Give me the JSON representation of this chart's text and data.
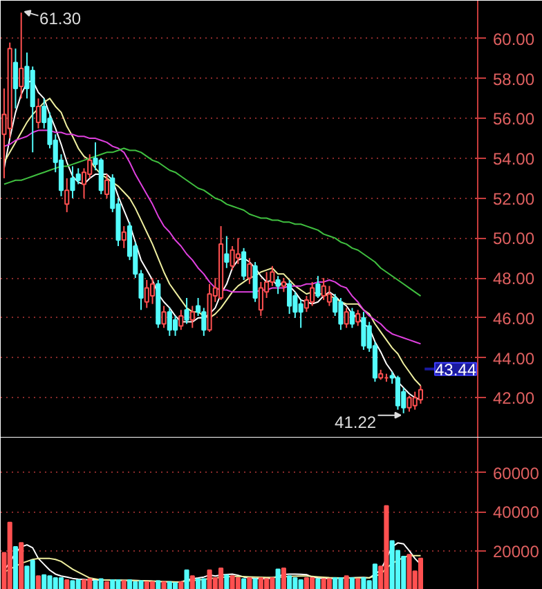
{
  "chart_data": [
    {
      "type": "candlestick",
      "categories": [
        null,
        null,
        null,
        null,
        null,
        null,
        null,
        null,
        null,
        null,
        null,
        null,
        null,
        null,
        null,
        null,
        null,
        null,
        null,
        null,
        null,
        null,
        null,
        null,
        null,
        null,
        null,
        null,
        null,
        null,
        null,
        null,
        null,
        null,
        null,
        null,
        null,
        null,
        null,
        null,
        null,
        null,
        null,
        null,
        null,
        null,
        null,
        null,
        null,
        null,
        null,
        null,
        null,
        null,
        null,
        null,
        null,
        null,
        null,
        null,
        null,
        null,
        null,
        null,
        null,
        null,
        null,
        null,
        null,
        null,
        null,
        null,
        null,
        null
      ],
      "ohlc": [
        [
          55.2,
          57.5,
          53.0,
          56.2
        ],
        [
          55.5,
          59.8,
          55.0,
          59.5
        ],
        [
          58.8,
          59.5,
          56.5,
          57.5
        ],
        [
          57.6,
          61.3,
          57.0,
          58.5
        ],
        [
          58.6,
          59.3,
          57.0,
          57.5
        ],
        [
          58.4,
          58.6,
          54.3,
          56.6
        ],
        [
          55.8,
          57.0,
          55.5,
          56.6
        ],
        [
          56.6,
          57.0,
          55.5,
          55.8
        ],
        [
          56.0,
          56.3,
          54.5,
          54.7
        ],
        [
          54.9,
          55.2,
          53.3,
          53.8
        ],
        [
          53.9,
          54.2,
          52.1,
          52.4
        ],
        [
          51.7,
          53.0,
          51.3,
          52.4
        ],
        [
          53.0,
          53.6,
          52.0,
          52.4
        ],
        [
          53.2,
          53.5,
          52.7,
          52.9
        ],
        [
          52.7,
          53.5,
          52.0,
          53.3
        ],
        [
          53.2,
          54.2,
          53.0,
          53.9
        ],
        [
          54.0,
          54.8,
          53.4,
          53.7
        ],
        [
          53.9,
          54.0,
          52.2,
          52.4
        ],
        [
          52.2,
          53.2,
          52.0,
          52.9
        ],
        [
          53.0,
          53.2,
          51.3,
          51.5
        ],
        [
          51.7,
          52.0,
          49.6,
          49.9
        ],
        [
          49.9,
          50.6,
          49.5,
          50.3
        ],
        [
          50.6,
          50.8,
          48.9,
          49.1
        ],
        [
          49.6,
          49.8,
          48.0,
          48.2
        ],
        [
          48.2,
          48.4,
          46.4,
          47.0
        ],
        [
          46.8,
          47.9,
          46.5,
          47.5
        ],
        [
          47.1,
          48.0,
          46.7,
          47.7
        ],
        [
          47.7,
          47.9,
          45.5,
          45.7
        ],
        [
          45.7,
          46.6,
          45.5,
          46.3
        ],
        [
          46.3,
          46.5,
          45.1,
          45.4
        ],
        [
          45.9,
          46.1,
          45.1,
          45.4
        ],
        [
          45.6,
          46.4,
          45.4,
          46.1
        ],
        [
          46.4,
          47.0,
          45.7,
          45.9
        ],
        [
          45.9,
          46.6,
          45.5,
          46.3
        ],
        [
          46.6,
          47.0,
          46.1,
          46.3
        ],
        [
          46.3,
          46.5,
          45.1,
          45.4
        ],
        [
          45.4,
          47.7,
          45.3,
          47.2
        ],
        [
          47.1,
          48.0,
          46.8,
          47.5
        ],
        [
          47.0,
          50.6,
          46.9,
          49.7
        ],
        [
          49.2,
          50.1,
          48.5,
          48.8
        ],
        [
          48.6,
          49.6,
          48.4,
          49.4
        ],
        [
          49.0,
          50.0,
          48.7,
          49.2
        ],
        [
          49.3,
          49.5,
          47.9,
          48.1
        ],
        [
          48.0,
          49.0,
          47.7,
          48.7
        ],
        [
          48.6,
          48.8,
          46.8,
          47.0
        ],
        [
          46.4,
          47.8,
          46.1,
          47.5
        ],
        [
          47.3,
          48.3,
          47.0,
          47.8
        ],
        [
          47.8,
          48.6,
          47.6,
          48.3
        ],
        [
          47.9,
          48.1,
          47.2,
          47.6
        ],
        [
          47.6,
          48.0,
          47.3,
          47.8
        ],
        [
          47.7,
          47.9,
          46.2,
          46.6
        ],
        [
          47.1,
          47.3,
          46.0,
          46.3
        ],
        [
          46.7,
          46.9,
          45.5,
          46.3
        ],
        [
          46.5,
          47.1,
          46.3,
          46.9
        ],
        [
          46.8,
          47.8,
          46.6,
          47.5
        ],
        [
          47.7,
          48.1,
          47.0,
          47.1
        ],
        [
          47.1,
          48.0,
          46.9,
          47.6
        ],
        [
          46.8,
          47.6,
          46.6,
          47.2
        ],
        [
          47.0,
          47.2,
          46.1,
          46.3
        ],
        [
          46.8,
          47.0,
          45.4,
          45.7
        ],
        [
          45.7,
          46.5,
          45.5,
          46.3
        ],
        [
          46.3,
          46.5,
          45.5,
          45.7
        ],
        [
          45.8,
          46.4,
          45.6,
          46.2
        ],
        [
          46.0,
          46.3,
          44.4,
          44.6
        ],
        [
          45.6,
          45.8,
          44.3,
          44.5
        ],
        [
          44.6,
          44.8,
          42.8,
          43.0
        ],
        [
          43.0,
          43.4,
          42.9,
          43.2
        ],
        [
          43.0,
          43.2,
          42.8,
          43.0
        ],
        [
          43.1,
          43.3,
          42.7,
          43.0
        ],
        [
          43.0,
          43.1,
          41.4,
          41.6
        ],
        [
          42.3,
          42.5,
          41.22,
          41.5
        ],
        [
          41.5,
          42.1,
          41.3,
          42.0
        ],
        [
          41.6,
          42.3,
          41.4,
          42.0
        ],
        [
          41.9,
          42.6,
          41.7,
          42.4
        ]
      ],
      "colors": [
        "#ff5050",
        "#ff5050",
        "#54fcfc",
        "#ff5050",
        "#54fcfc",
        "#54fcfc",
        "#ff5050",
        "#54fcfc",
        "#54fcfc",
        "#54fcfc",
        "#54fcfc",
        "#ff5050",
        "#54fcfc",
        "#54fcfc",
        "#ff5050",
        "#ff5050",
        "#54fcfc",
        "#54fcfc",
        "#ff5050",
        "#54fcfc",
        "#54fcfc",
        "#ff5050",
        "#54fcfc",
        "#54fcfc",
        "#54fcfc",
        "#ff5050",
        "#ff5050",
        "#54fcfc",
        "#ff5050",
        "#54fcfc",
        "#54fcfc",
        "#ff5050",
        "#54fcfc",
        "#ff5050",
        "#54fcfc",
        "#54fcfc",
        "#ff5050",
        "#ff5050",
        "#ff5050",
        "#54fcfc",
        "#ff5050",
        "#ff5050",
        "#54fcfc",
        "#ff5050",
        "#54fcfc",
        "#ff5050",
        "#ff5050",
        "#ff5050",
        "#54fcfc",
        "#ff5050",
        "#54fcfc",
        "#54fcfc",
        "#54fcfc",
        "#ff5050",
        "#ff5050",
        "#54fcfc",
        "#ff5050",
        "#ff5050",
        "#54fcfc",
        "#54fcfc",
        "#ff5050",
        "#54fcfc",
        "#ff5050",
        "#54fcfc",
        "#54fcfc",
        "#54fcfc",
        "#ff5050",
        "#ff5050",
        "#54fcfc",
        "#54fcfc",
        "#54fcfc",
        "#ff5050",
        "#ff5050",
        "#ff5050"
      ],
      "series": [
        {
          "type": "line",
          "color": "#ffffff",
          "values": [
            53.5,
            55.0,
            56.3,
            57.2,
            57.8,
            57.9,
            57.3,
            57.0,
            56.2,
            55.5,
            54.7,
            53.8,
            53.1,
            52.8,
            52.7,
            53.0,
            53.2,
            53.2,
            53.2,
            52.9,
            52.1,
            51.4,
            50.7,
            49.8,
            48.9,
            48.4,
            47.9,
            47.2,
            46.8,
            46.5,
            46.1,
            45.8,
            45.8,
            45.8,
            46.0,
            46.0,
            46.2,
            46.5,
            47.2,
            47.7,
            48.5,
            48.9,
            49.0,
            48.8,
            48.5,
            48.1,
            47.8,
            47.9,
            47.6,
            47.8,
            47.6,
            47.3,
            46.9,
            46.8,
            46.7,
            46.8,
            47.1,
            47.3,
            47.1,
            46.8,
            46.6,
            46.2,
            46.0,
            45.7,
            45.5,
            44.8,
            44.3,
            43.7,
            43.3,
            42.8,
            42.5,
            42.2,
            42.0,
            41.9
          ]
        },
        {
          "type": "line",
          "color": "#f0f0a0",
          "values": [
            53.8,
            54.3,
            54.8,
            55.3,
            55.8,
            56.2,
            56.5,
            56.8,
            57.0,
            56.6,
            56.3,
            55.6,
            55.1,
            54.5,
            54.1,
            53.9,
            53.5,
            53.2,
            53.0,
            52.8,
            52.6,
            52.3,
            52.0,
            51.5,
            50.9,
            50.3,
            49.7,
            49.0,
            48.3,
            47.7,
            47.3,
            46.9,
            46.5,
            46.3,
            46.3,
            46.1,
            46.0,
            46.2,
            46.5,
            46.9,
            47.3,
            47.6,
            47.8,
            48.0,
            48.1,
            48.3,
            48.4,
            48.5,
            48.2,
            48.2,
            47.9,
            47.6,
            47.4,
            47.2,
            47.3,
            47.2,
            47.2,
            47.1,
            47.0,
            46.8,
            46.7,
            46.7,
            46.7,
            46.4,
            46.2,
            45.7,
            45.3,
            44.9,
            44.5,
            44.2,
            43.7,
            43.3,
            42.9,
            42.6
          ]
        },
        {
          "type": "line",
          "color": "#e040e0",
          "values": [
            54.6,
            54.7,
            54.9,
            55.0,
            55.1,
            55.3,
            55.4,
            55.4,
            55.4,
            55.3,
            55.3,
            55.2,
            55.2,
            55.1,
            55.1,
            55.0,
            55.0,
            54.9,
            54.8,
            54.6,
            54.5,
            54.3,
            53.8,
            53.2,
            52.7,
            52.2,
            51.7,
            51.1,
            50.6,
            50.3,
            49.9,
            49.6,
            49.2,
            48.9,
            48.5,
            48.2,
            47.8,
            47.5,
            47.4,
            47.4,
            47.3,
            47.3,
            47.3,
            47.3,
            47.3,
            47.4,
            47.4,
            47.5,
            47.5,
            47.5,
            47.6,
            47.6,
            47.6,
            47.7,
            47.7,
            47.8,
            47.8,
            47.9,
            47.8,
            47.6,
            47.5,
            47.1,
            46.8,
            46.4,
            46.1,
            45.9,
            45.7,
            45.4,
            45.2,
            45.1,
            45.0,
            44.9,
            44.8,
            44.7
          ]
        },
        {
          "type": "line",
          "color": "#40c040",
          "values": [
            52.7,
            52.8,
            52.9,
            52.9,
            53.0,
            53.1,
            53.2,
            53.3,
            53.4,
            53.5,
            53.6,
            53.6,
            53.7,
            53.8,
            53.9,
            54.0,
            54.1,
            54.2,
            54.3,
            54.3,
            54.4,
            54.5,
            54.4,
            54.4,
            54.3,
            54.1,
            53.9,
            53.8,
            53.6,
            53.4,
            53.3,
            53.1,
            52.9,
            52.7,
            52.5,
            52.4,
            52.2,
            52.0,
            51.9,
            51.7,
            51.6,
            51.5,
            51.4,
            51.2,
            51.1,
            51.0,
            51.0,
            50.9,
            50.9,
            50.8,
            50.8,
            50.7,
            50.7,
            50.6,
            50.5,
            50.4,
            50.2,
            50.1,
            50.0,
            49.8,
            49.7,
            49.5,
            49.4,
            49.2,
            49.0,
            48.8,
            48.5,
            48.3,
            48.1,
            47.9,
            47.7,
            47.5,
            47.3,
            47.1
          ]
        }
      ],
      "ylim": [
        40.0,
        61.9
      ],
      "yticks": [
        {
          "value": 42,
          "label": "42.00"
        },
        {
          "value": 44,
          "label": "44.00"
        },
        {
          "value": 46,
          "label": "46.00"
        },
        {
          "value": 48,
          "label": "48.00"
        },
        {
          "value": 50,
          "label": "50.00"
        },
        {
          "value": 52,
          "label": "52.00"
        },
        {
          "value": 54,
          "label": "54.00"
        },
        {
          "value": 56,
          "label": "56.00"
        },
        {
          "value": 58,
          "label": "58.00"
        },
        {
          "value": 60,
          "label": "60.00"
        }
      ],
      "annotations": [
        "61.30",
        "41.22"
      ],
      "ref_lines": [
        {
          "axis": "y",
          "value": 43.44,
          "label": "43.44",
          "color": "#1a1aa0"
        }
      ],
      "grid": "y",
      "tick_labels": "y"
    },
    {
      "type": "bar",
      "categories": [
        null,
        null,
        null,
        null,
        null,
        null,
        null,
        null,
        null,
        null,
        null,
        null,
        null,
        null,
        null,
        null,
        null,
        null,
        null,
        null,
        null,
        null,
        null,
        null,
        null,
        null,
        null,
        null,
        null,
        null,
        null,
        null,
        null,
        null,
        null,
        null,
        null,
        null,
        null,
        null,
        null,
        null,
        null,
        null,
        null,
        null,
        null,
        null,
        null,
        null,
        null,
        null,
        null,
        null,
        null,
        null,
        null,
        null,
        null,
        null,
        null,
        null,
        null,
        null,
        null,
        null,
        null,
        null,
        null,
        null,
        null,
        null,
        null,
        null
      ],
      "values": [
        19000,
        34500,
        22000,
        24000,
        12000,
        15000,
        7000,
        7500,
        7000,
        6000,
        6000,
        5000,
        4500,
        5000,
        5000,
        5500,
        4500,
        5500,
        4000,
        5000,
        5000,
        4500,
        5000,
        4000,
        4500,
        4000,
        4000,
        4500,
        4000,
        4000,
        3500,
        4000,
        10000,
        7000,
        5500,
        5500,
        10000,
        6000,
        11000,
        7500,
        7000,
        6000,
        5500,
        6000,
        5500,
        6000,
        5500,
        6000,
        10500,
        11000,
        7000,
        6000,
        5000,
        6000,
        6000,
        5500,
        5500,
        5500,
        6000,
        6000,
        7000,
        6000,
        5500,
        6000,
        4500,
        13000,
        12000,
        43000,
        25000,
        20000,
        17000,
        18000,
        9500,
        16000
      ],
      "colors": [
        "#ff5050",
        "#ff5050",
        "#54fcfc",
        "#ff5050",
        "#54fcfc",
        "#54fcfc",
        "#ff5050",
        "#54fcfc",
        "#54fcfc",
        "#54fcfc",
        "#54fcfc",
        "#ff5050",
        "#54fcfc",
        "#54fcfc",
        "#ff5050",
        "#ff5050",
        "#54fcfc",
        "#54fcfc",
        "#ff5050",
        "#54fcfc",
        "#54fcfc",
        "#ff5050",
        "#54fcfc",
        "#54fcfc",
        "#54fcfc",
        "#ff5050",
        "#ff5050",
        "#54fcfc",
        "#ff5050",
        "#54fcfc",
        "#54fcfc",
        "#ff5050",
        "#54fcfc",
        "#ff5050",
        "#54fcfc",
        "#54fcfc",
        "#ff5050",
        "#ff5050",
        "#ff5050",
        "#54fcfc",
        "#ff5050",
        "#ff5050",
        "#54fcfc",
        "#ff5050",
        "#54fcfc",
        "#ff5050",
        "#ff5050",
        "#ff5050",
        "#54fcfc",
        "#ff5050",
        "#54fcfc",
        "#54fcfc",
        "#54fcfc",
        "#ff5050",
        "#ff5050",
        "#54fcfc",
        "#ff5050",
        "#ff5050",
        "#54fcfc",
        "#54fcfc",
        "#ff5050",
        "#54fcfc",
        "#ff5050",
        "#54fcfc",
        "#54fcfc",
        "#54fcfc",
        "#ff5050",
        "#ff5050",
        "#54fcfc",
        "#54fcfc",
        "#54fcfc",
        "#ff5050",
        "#ff5050",
        "#ff5050"
      ],
      "series": [
        {
          "type": "line",
          "color": "#ffffff",
          "values": [
            10000,
            14000,
            19000,
            22000,
            23000,
            21500,
            16000,
            13000,
            10000,
            8000,
            7000,
            6500,
            5800,
            5400,
            5200,
            5000,
            5000,
            5000,
            5000,
            4900,
            4900,
            4800,
            4800,
            4700,
            4600,
            4500,
            4300,
            4200,
            4100,
            4000,
            3900,
            3900,
            5000,
            5600,
            6000,
            6500,
            7500,
            7000,
            7500,
            7800,
            8000,
            7400,
            6500,
            6000,
            5800,
            5700,
            5600,
            6000,
            6800,
            7800,
            8000,
            8000,
            7900,
            7700,
            6500,
            6000,
            5800,
            5800,
            5800,
            5900,
            6000,
            6100,
            6200,
            6300,
            6000,
            8000,
            10000,
            16000,
            22000,
            24000,
            23500,
            20000,
            16000,
            13000
          ]
        },
        {
          "type": "line",
          "color": "#f0f0a0",
          "values": [
            9000,
            10500,
            12000,
            13500,
            14500,
            15500,
            16000,
            16000,
            16000,
            15500,
            14500,
            12500,
            10500,
            9000,
            7500,
            6000,
            5500,
            5000,
            5000,
            4900,
            4900,
            4800,
            4800,
            4700,
            4600,
            4500,
            4400,
            4300,
            4200,
            4100,
            4000,
            4000,
            4400,
            4700,
            5000,
            5300,
            5700,
            6000,
            6300,
            6600,
            6800,
            6800,
            6700,
            6600,
            6500,
            6400,
            6300,
            6300,
            6400,
            6600,
            6800,
            6900,
            7000,
            7000,
            6800,
            6600,
            6400,
            6200,
            6100,
            6000,
            6000,
            6000,
            6100,
            6100,
            6100,
            7000,
            8000,
            11000,
            13500,
            15000,
            16500,
            17500,
            17500,
            17500
          ]
        }
      ],
      "ylim": [
        0,
        78000
      ],
      "yticks": [
        20000,
        40000,
        60000
      ],
      "grid": "y",
      "tick_labels": "y"
    }
  ]
}
